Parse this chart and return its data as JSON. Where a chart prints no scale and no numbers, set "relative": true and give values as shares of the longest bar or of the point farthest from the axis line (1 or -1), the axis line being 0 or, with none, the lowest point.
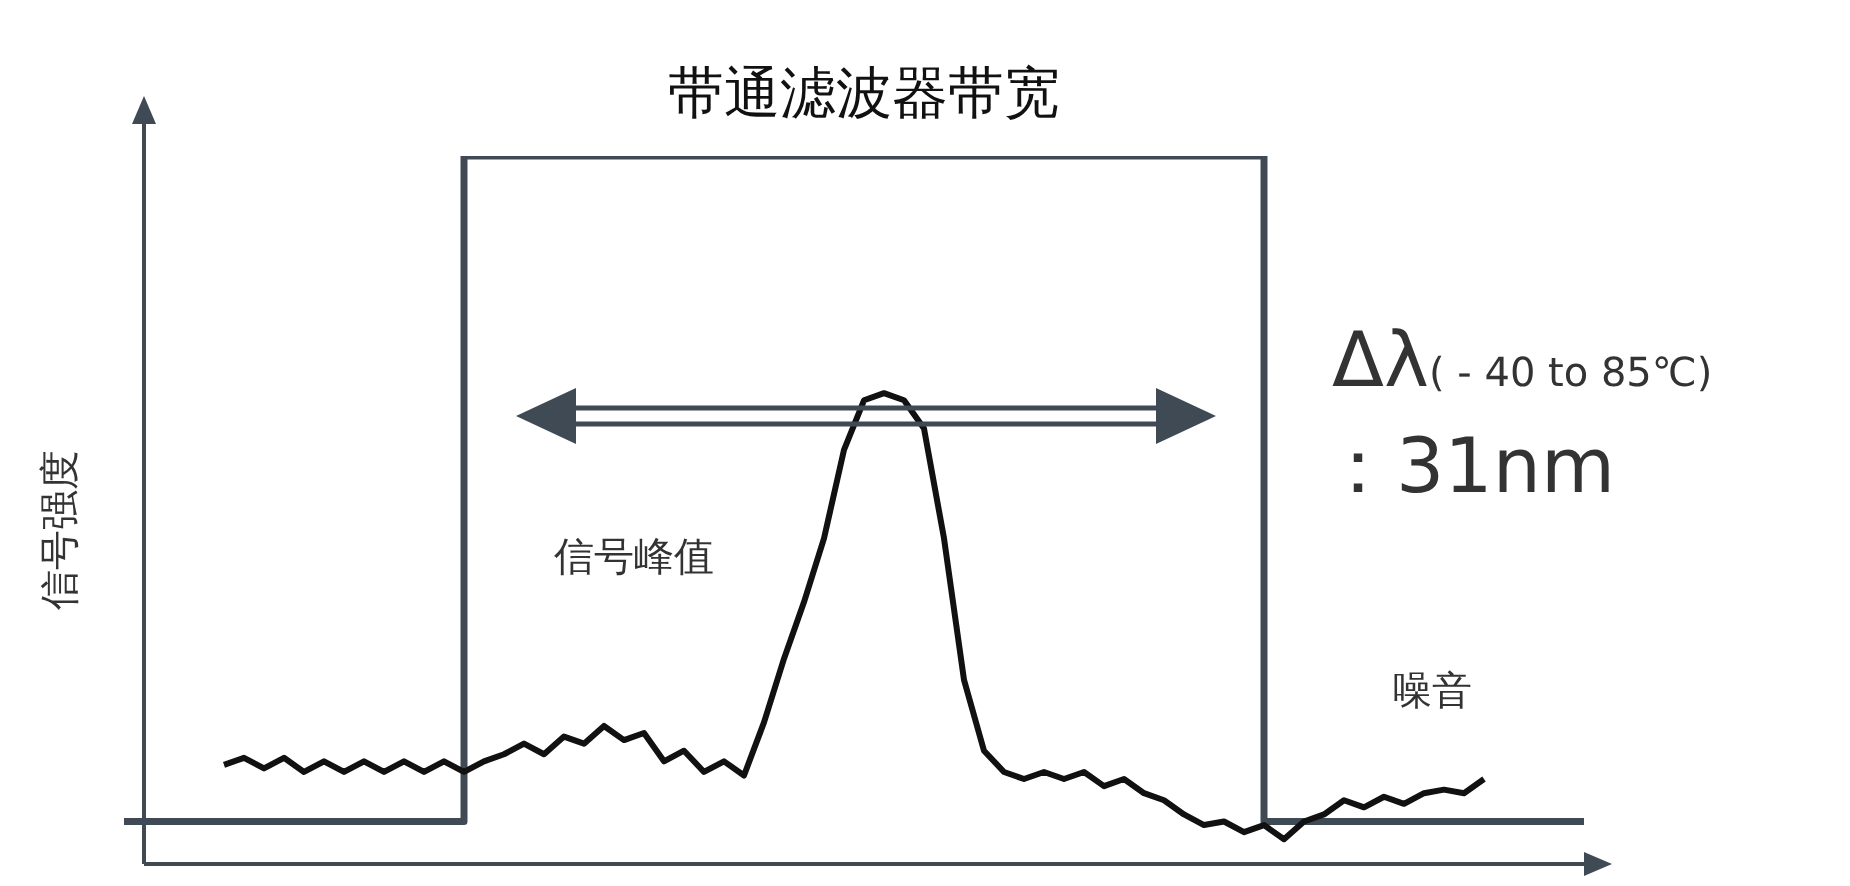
{
  "chart_data": {
    "type": "line",
    "relative": true,
    "title": "带通滤波器带宽",
    "ylabel": "信号强度",
    "marker": "none",
    "line_style": "solid",
    "annotations": [
      "信号峰值",
      "噪音",
      "Δλ( - 40 to 85℃)",
      "：31nm"
    ],
    "categories": [
      null,
      null,
      null,
      null,
      null,
      null,
      null,
      null,
      null,
      null,
      null,
      null,
      null,
      null,
      null,
      null,
      null,
      null,
      null,
      null,
      null,
      null,
      null,
      null,
      null,
      null,
      null,
      null,
      null,
      null,
      null,
      null,
      null,
      null,
      null,
      null,
      null,
      null,
      null,
      null,
      null,
      null,
      null,
      null,
      null,
      null,
      null,
      null,
      null,
      null,
      null,
      null,
      null,
      null,
      null,
      null,
      null,
      null,
      null,
      null,
      null,
      null,
      null,
      null,
      null,
      null,
      null,
      null,
      null,
      null,
      null,
      null,
      null,
      null
    ],
    "series": [
      {
        "type": "step",
        "color": "#3f4a55",
        "values": [
          0.06,
          0.06,
          0.06,
          0.06,
          0.06,
          0.06,
          0.06,
          0.06,
          0.06,
          0.06,
          0.06,
          0.06,
          0.06,
          0.06,
          0.06,
          0.06,
          0.06,
          1,
          1,
          1,
          1,
          1,
          1,
          1,
          1,
          1,
          1,
          1,
          1,
          1,
          1,
          1,
          1,
          1,
          1,
          1,
          1,
          1,
          1,
          1,
          1,
          1,
          1,
          1,
          1,
          1,
          1,
          1,
          1,
          1,
          1,
          1,
          1,
          1,
          1,
          1,
          1,
          0.06,
          0.06,
          0.06,
          0.06,
          0.06,
          0.06,
          0.06,
          0.06,
          0.06,
          0.06,
          0.06,
          0.06,
          0.06,
          0.06,
          0.06,
          0.06,
          0.06
        ]
      },
      {
        "color": "#111111",
        "values": [
          null,
          null,
          null,
          null,
          null,
          0.14,
          0.15,
          0.135,
          0.15,
          0.13,
          0.145,
          0.13,
          0.145,
          0.13,
          0.145,
          0.13,
          0.145,
          0.13,
          0.145,
          0.155,
          0.17,
          0.155,
          0.18,
          0.17,
          0.195,
          0.175,
          0.185,
          0.145,
          0.16,
          0.13,
          0.145,
          0.125,
          0.2,
          0.29,
          0.37,
          0.46,
          0.585,
          0.655,
          0.665,
          0.655,
          0.615,
          0.46,
          0.26,
          0.16,
          0.13,
          0.12,
          0.13,
          0.12,
          0.13,
          0.11,
          0.12,
          0.1,
          0.09,
          0.07,
          0.055,
          0.06,
          0.045,
          0.055,
          0.035,
          0.06,
          0.07,
          0.09,
          0.08,
          0.095,
          0.085,
          0.1,
          0.105,
          0.1,
          0.12,
          null,
          null,
          null,
          null,
          null
        ]
      }
    ]
  }
}
